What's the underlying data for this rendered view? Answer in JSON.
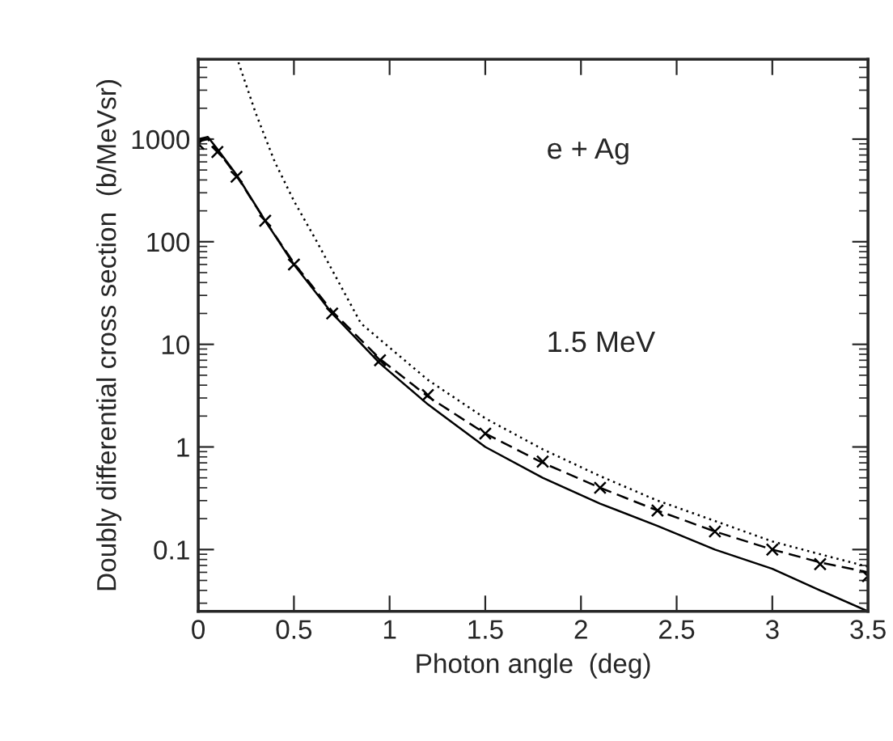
{
  "chart_data": {
    "type": "line",
    "xlabel": "Photon angle  (deg)",
    "ylabel": "Doubly differential cross section  (b/MeVsr)",
    "log": "y",
    "xlim": [
      0,
      3.5
    ],
    "ylim": [
      0.025,
      6000
    ],
    "xticks": [
      0,
      0.5,
      1,
      1.5,
      2,
      2.5,
      3,
      3.5
    ],
    "yticks": [
      0.1,
      1,
      10,
      100,
      1000
    ],
    "grid": false,
    "annotations": [
      "e + Ag",
      "1.5 MeV"
    ],
    "series": [
      {
        "color": "#000000",
        "line_style": "solid",
        "x": [
          0,
          0.05,
          0.1,
          0.2,
          0.35,
          0.5,
          0.7,
          0.95,
          1.2,
          1.5,
          1.8,
          2.1,
          2.4,
          2.7,
          3.0,
          3.25,
          3.5
        ],
        "values": [
          1000,
          1050,
          800,
          450,
          160,
          60,
          20,
          6.5,
          2.6,
          1.0,
          0.5,
          0.28,
          0.17,
          0.1,
          0.065,
          0.04,
          0.025
        ]
      },
      {
        "color": "#000000",
        "line_style": "dashed",
        "x": [
          0,
          0.05,
          0.1,
          0.2,
          0.35,
          0.5,
          0.7,
          0.95,
          1.2,
          1.5,
          1.8,
          2.1,
          2.4,
          2.7,
          3.0,
          3.25,
          3.5
        ],
        "values": [
          950,
          1000,
          780,
          440,
          160,
          62,
          21,
          7.2,
          3.1,
          1.35,
          0.7,
          0.4,
          0.24,
          0.15,
          0.1,
          0.075,
          0.06
        ]
      },
      {
        "color": "#000000",
        "line_style": "dotted",
        "x": [
          0.21,
          0.3,
          0.4,
          0.5,
          0.62,
          0.85,
          1.2,
          1.5,
          1.8,
          2.1,
          2.4,
          2.7,
          3.0,
          3.25,
          3.5
        ],
        "values": [
          5600,
          1800,
          600,
          250,
          100,
          16,
          4.5,
          1.9,
          0.95,
          0.52,
          0.3,
          0.19,
          0.12,
          0.09,
          0.068
        ]
      },
      {
        "type": "scatter",
        "color": "#000000",
        "marker": "cross",
        "x": [
          0,
          0.1,
          0.2,
          0.35,
          0.5,
          0.7,
          0.95,
          1.2,
          1.5,
          1.8,
          2.1,
          2.4,
          2.7,
          3.0,
          3.25,
          3.5
        ],
        "values": [
          900,
          750,
          430,
          160,
          60,
          20,
          7,
          3.2,
          1.35,
          0.72,
          0.4,
          0.24,
          0.15,
          0.1,
          0.072,
          0.055
        ]
      }
    ]
  }
}
